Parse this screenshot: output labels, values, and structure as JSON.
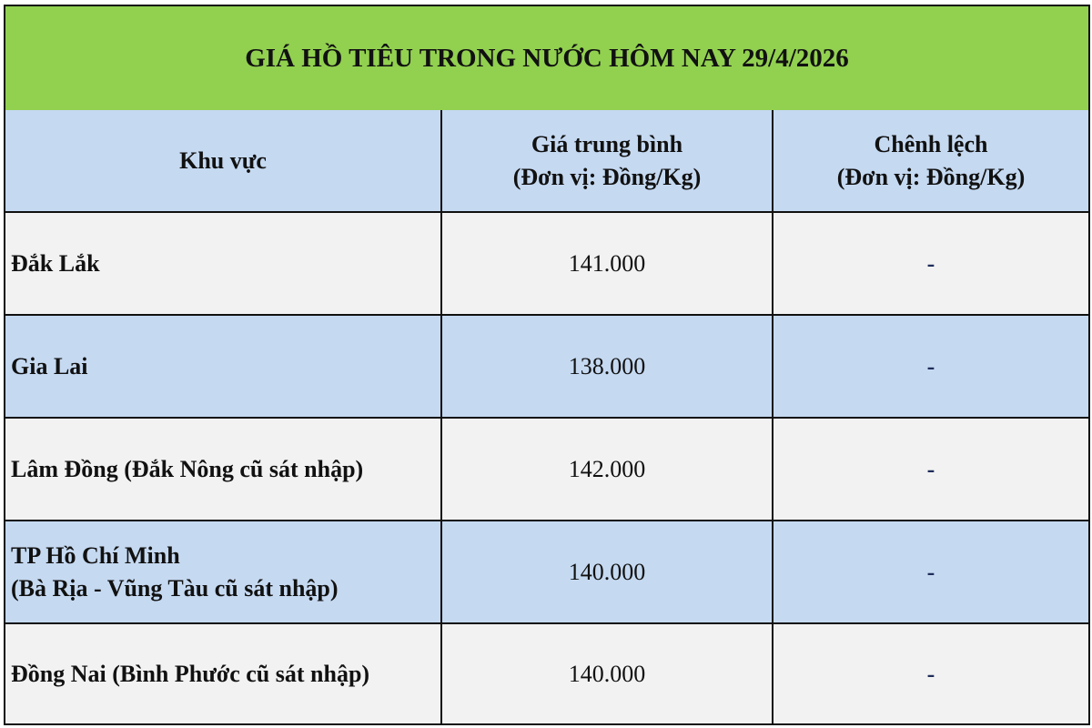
{
  "title": "GIÁ HỒ TIÊU TRONG NƯỚC HÔM NAY 29/4/2026",
  "headers": {
    "region": "Khu vực",
    "price_line1": "Giá trung bình",
    "price_line2": "(Đơn vị: Đồng/Kg)",
    "change_line1": "Chênh lệch",
    "change_line2": "(Đơn vị: Đồng/Kg)"
  },
  "rows": [
    {
      "region": "Đắk Lắk",
      "region2": "",
      "price": "141.000",
      "change": "-"
    },
    {
      "region": "Gia Lai",
      "region2": "",
      "price": "138.000",
      "change": "-"
    },
    {
      "region": "Lâm Đồng (Đắk Nông cũ sát nhập)",
      "region2": "",
      "price": "142.000",
      "change": "-"
    },
    {
      "region": "TP Hồ Chí Minh",
      "region2": "(Bà Rịa - Vũng Tàu cũ sát nhập)",
      "price": "140.000",
      "change": "-"
    },
    {
      "region": "Đồng Nai (Bình Phước cũ sát nhập)",
      "region2": "",
      "price": "140.000",
      "change": "-"
    }
  ],
  "colors": {
    "title_bg": "#92d050",
    "header_bg": "#c5d9f1",
    "alt_row_bg": "#f2f2f2"
  }
}
